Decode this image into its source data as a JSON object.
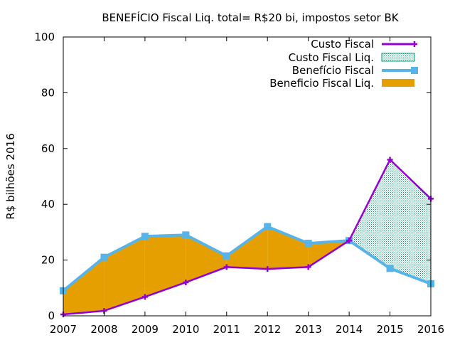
{
  "chart_data": {
    "type": "area",
    "title": "BENEFÍCIO Fiscal Liq. total= R$20 bi, impostos setor BK",
    "ylabel": "R$ bilhões 2016",
    "xlabel": "",
    "x": [
      2007,
      2008,
      2009,
      2010,
      2011,
      2012,
      2013,
      2014,
      2015,
      2016
    ],
    "xlim": [
      2007,
      2016
    ],
    "ylim": [
      0,
      100
    ],
    "xticks": [
      "2007",
      "2008",
      "2009",
      "2010",
      "2011",
      "2012",
      "2013",
      "2014",
      "2015",
      "2016"
    ],
    "yticks": [
      "0",
      "20",
      "40",
      "60",
      "80",
      "100"
    ],
    "legend_position": "top-right",
    "grid": false,
    "series": [
      {
        "name": "Custo Fiscal",
        "kind": "line",
        "marker": "plus",
        "color": "#9400D3",
        "values": [
          0.5,
          1.8,
          6.8,
          12.0,
          17.5,
          16.8,
          17.5,
          27.0,
          56.0,
          42.0
        ]
      },
      {
        "name": "Custo Fiscal Liq.",
        "kind": "fill-between",
        "pattern": "dotted",
        "color": "#009E73"
      },
      {
        "name": "Benefício Fiscal",
        "kind": "line",
        "marker": "square",
        "color": "#56B4E9",
        "values": [
          9.0,
          21.0,
          28.5,
          29.0,
          21.5,
          32.0,
          26.0,
          27.0,
          17.0,
          11.5
        ]
      },
      {
        "name": "Beneficio Fiscal Liq.",
        "kind": "fill-between",
        "color": "#E69F00"
      }
    ]
  }
}
